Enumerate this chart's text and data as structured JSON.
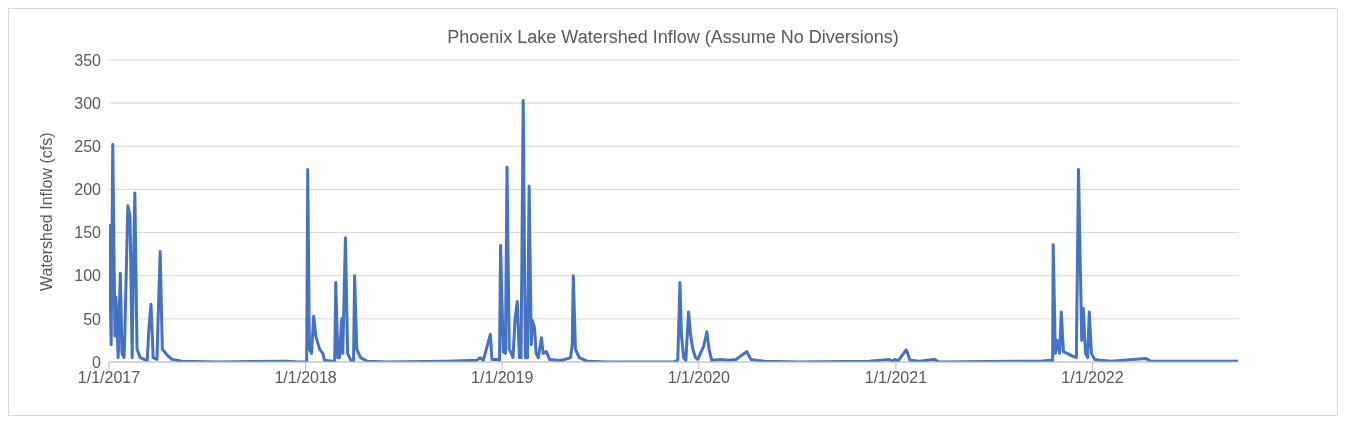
{
  "chart_data": {
    "type": "line",
    "title": "Phoenix Lake Watershed Inflow (Assume No Diversions)",
    "ylabel": "Watershed Inflow (cfs)",
    "series": [
      {
        "color": "#4472c4",
        "x": [
          "2017-01-01",
          "2017-01-05",
          "2017-01-08",
          "2017-01-12",
          "2017-01-14",
          "2017-01-18",
          "2017-01-22",
          "2017-01-25",
          "2017-01-29",
          "2017-01-31",
          "2017-02-05",
          "2017-02-09",
          "2017-02-13",
          "2017-02-15",
          "2017-02-18",
          "2017-02-22",
          "2017-02-28",
          "2017-03-07",
          "2017-03-13",
          "2017-03-16",
          "2017-03-20",
          "2017-03-24",
          "2017-03-31",
          "2017-04-06",
          "2017-04-10",
          "2017-04-19",
          "2017-04-28",
          "2017-05-17",
          "2017-07-21",
          "2017-11-28",
          "2017-12-17",
          "2018-01-03",
          "2018-01-05",
          "2018-01-08",
          "2018-01-12",
          "2018-01-16",
          "2018-01-20",
          "2018-01-27",
          "2018-02-02",
          "2018-02-05",
          "2018-02-20",
          "2018-02-24",
          "2018-02-26",
          "2018-03-02",
          "2018-03-05",
          "2018-03-09",
          "2018-03-11",
          "2018-03-16",
          "2018-03-20",
          "2018-03-26",
          "2018-03-31",
          "2018-04-02",
          "2018-04-06",
          "2018-04-13",
          "2018-04-25",
          "2018-06-01",
          "2018-09-21",
          "2018-11-15",
          "2018-11-21",
          "2018-11-27",
          "2018-12-10",
          "2018-12-13",
          "2018-12-23",
          "2018-12-27",
          "2018-12-29",
          "2019-01-03",
          "2019-01-07",
          "2019-01-10",
          "2019-01-14",
          "2019-01-18",
          "2019-01-21",
          "2019-01-25",
          "2019-01-29",
          "2019-02-02",
          "2019-02-05",
          "2019-02-09",
          "2019-02-13",
          "2019-02-17",
          "2019-02-20",
          "2019-02-24",
          "2019-02-26",
          "2019-03-02",
          "2019-03-05",
          "2019-03-09",
          "2019-03-15",
          "2019-03-18",
          "2019-03-24",
          "2019-03-30",
          "2019-04-13",
          "2019-04-23",
          "2019-05-08",
          "2019-05-11",
          "2019-05-13",
          "2019-05-17",
          "2019-05-24",
          "2019-06-08",
          "2019-07-16",
          "2019-10-17",
          "2019-11-15",
          "2019-11-23",
          "2019-11-27",
          "2019-11-30",
          "2019-12-04",
          "2019-12-08",
          "2019-12-13",
          "2019-12-17",
          "2019-12-21",
          "2019-12-26",
          "2019-12-30",
          "2020-01-10",
          "2020-01-16",
          "2020-01-20",
          "2020-01-25",
          "2020-02-11",
          "2020-02-26",
          "2020-03-10",
          "2020-03-30",
          "2020-04-07",
          "2020-05-01",
          "2020-07-05",
          "2020-11-12",
          "2020-12-19",
          "2020-12-25",
          "2020-12-30",
          "2021-01-05",
          "2021-01-20",
          "2021-01-23",
          "2021-01-27",
          "2021-02-13",
          "2021-03-13",
          "2021-03-22",
          "2021-09-26",
          "2021-10-15",
          "2021-10-19",
          "2021-10-20",
          "2021-10-24",
          "2021-10-28",
          "2021-11-01",
          "2021-11-04",
          "2021-11-08",
          "2021-11-21",
          "2021-12-02",
          "2021-12-06",
          "2021-12-08",
          "2021-12-12",
          "2021-12-15",
          "2021-12-19",
          "2021-12-23",
          "2021-12-26",
          "2021-12-30",
          "2022-01-05",
          "2022-01-16",
          "2022-02-04",
          "2022-04-10",
          "2022-04-19",
          "2022-06-14",
          "2022-09-28"
        ],
        "values": [
          160,
          20,
          252,
          30,
          75,
          5,
          103,
          10,
          5,
          50,
          181,
          170,
          5,
          100,
          196,
          15,
          5,
          3,
          2,
          38,
          67,
          5,
          3,
          128,
          15,
          8,
          3,
          1,
          0,
          1,
          0,
          0,
          223,
          15,
          10,
          53,
          30,
          15,
          10,
          2,
          1,
          0,
          92,
          5,
          5,
          50,
          10,
          144,
          10,
          2,
          0,
          100,
          15,
          5,
          1,
          0,
          1,
          2,
          5,
          2,
          32,
          3,
          3,
          2,
          135,
          12,
          10,
          226,
          15,
          10,
          5,
          50,
          70,
          5,
          5,
          303,
          5,
          5,
          204,
          20,
          48,
          40,
          10,
          5,
          28,
          10,
          12,
          3,
          2,
          2,
          5,
          20,
          100,
          15,
          5,
          1,
          0,
          0,
          0,
          2,
          92,
          30,
          5,
          2,
          58,
          30,
          15,
          5,
          3,
          18,
          35,
          15,
          2,
          3,
          2,
          3,
          12,
          3,
          1,
          0,
          1,
          3,
          1,
          3,
          1,
          14,
          10,
          2,
          1,
          3,
          0,
          1,
          2,
          0,
          136,
          10,
          25,
          10,
          58,
          12,
          8,
          5,
          223,
          155,
          25,
          62,
          10,
          5,
          58,
          10,
          3,
          2,
          1,
          4,
          1,
          1,
          1
        ]
      }
    ],
    "xlim": [
      "2017-01-01",
      "2022-09-30"
    ],
    "xticks": [
      {
        "value": "2017-01-01",
        "label": "1/1/2017"
      },
      {
        "value": "2018-01-01",
        "label": "1/1/2018"
      },
      {
        "value": "2019-01-01",
        "label": "1/1/2019"
      },
      {
        "value": "2020-01-01",
        "label": "1/1/2020"
      },
      {
        "value": "2021-01-01",
        "label": "1/1/2021"
      },
      {
        "value": "2022-01-01",
        "label": "1/1/2022"
      }
    ],
    "ylim": [
      0,
      350
    ],
    "yticks": [
      0,
      50,
      100,
      150,
      200,
      250,
      300,
      350
    ],
    "grid": "y",
    "marker": "none",
    "line_style": "solid"
  }
}
